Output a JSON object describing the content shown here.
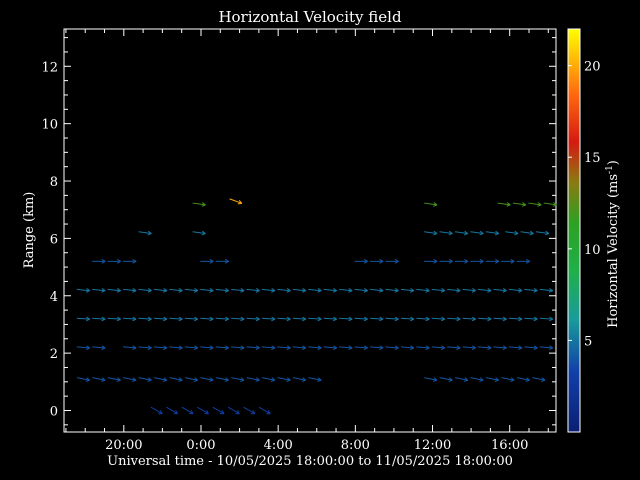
{
  "chart_data": {
    "type": "vector-field",
    "title": "Horizontal Velocity field",
    "xlabel": "Universal time - 10/05/2025 18:00:00 to 11/05/2025 18:00:00",
    "ylabel": "Range (km)",
    "x_units": "hours since 10/05/2025 18:00",
    "xlim": [
      -1.1,
      24.4
    ],
    "ylim": [
      -0.75,
      13.3
    ],
    "x_ticks": [
      {
        "value": 2,
        "label": "20:00"
      },
      {
        "value": 6,
        "label": "0:00"
      },
      {
        "value": 10,
        "label": "4:00"
      },
      {
        "value": 14,
        "label": "8:00"
      },
      {
        "value": 18,
        "label": "12:00"
      },
      {
        "value": 22,
        "label": "16:00"
      }
    ],
    "y_ticks": [
      {
        "value": 0,
        "label": "0"
      },
      {
        "value": 2,
        "label": "2"
      },
      {
        "value": 4,
        "label": "4"
      },
      {
        "value": 6,
        "label": "6"
      },
      {
        "value": 8,
        "label": "8"
      },
      {
        "value": 10,
        "label": "10"
      },
      {
        "value": 12,
        "label": "12"
      }
    ],
    "colorbar": {
      "label": "Horizontal Velocity (ms",
      "label_sup": "-1",
      "label_close": ")",
      "range": [
        0,
        22
      ],
      "ticks": [
        {
          "value": 5,
          "label": "5"
        },
        {
          "value": 10,
          "label": "10"
        },
        {
          "value": 15,
          "label": "15"
        },
        {
          "value": 20,
          "label": "20"
        }
      ]
    },
    "rows": [
      {
        "range_km": 0.0,
        "speed": 3,
        "dir_deg": -30,
        "hours": [
          3.7,
          4.5,
          5.3,
          6.1,
          6.9,
          7.7,
          8.5,
          9.3
        ]
      },
      {
        "range_km": 1.1,
        "speed": 4,
        "dir_deg": -12,
        "hours": [
          -0.1,
          0.7,
          1.5,
          2.3,
          3.1,
          3.9,
          4.7,
          5.5,
          6.3,
          7.1,
          7.9,
          8.7,
          9.5,
          10.3,
          11.1,
          11.9,
          17.9,
          18.7,
          19.5,
          20.3,
          21.1,
          21.9,
          22.7,
          23.5
        ]
      },
      {
        "range_km": 2.2,
        "speed": 4,
        "dir_deg": -5,
        "hours": [
          -0.1,
          0.7,
          2.3,
          3.1,
          3.9,
          4.7,
          5.5,
          6.3,
          7.1,
          7.9,
          8.7,
          9.5,
          10.3,
          11.1,
          11.9,
          12.7,
          13.5,
          14.3,
          15.1,
          15.9,
          16.7,
          17.5,
          18.3,
          19.1,
          19.9,
          20.7,
          21.5,
          22.3,
          23.1,
          23.9
        ]
      },
      {
        "range_km": 3.2,
        "speed": 5,
        "dir_deg": -4,
        "hours": [
          -0.1,
          0.7,
          1.5,
          2.3,
          3.1,
          3.9,
          4.7,
          5.5,
          6.3,
          7.1,
          7.9,
          8.7,
          9.5,
          10.3,
          11.1,
          11.9,
          12.7,
          13.5,
          14.3,
          15.1,
          15.9,
          16.7,
          17.5,
          18.3,
          19.1,
          19.9,
          20.7,
          21.5,
          22.3,
          23.1,
          23.9
        ]
      },
      {
        "range_km": 4.2,
        "speed": 5,
        "dir_deg": -6,
        "hours": [
          -0.1,
          0.7,
          1.5,
          2.3,
          3.1,
          3.9,
          4.7,
          5.5,
          6.3,
          7.1,
          7.9,
          8.7,
          9.5,
          10.3,
          11.1,
          11.9,
          12.7,
          13.5,
          14.3,
          15.1,
          15.9,
          16.7,
          17.5,
          18.3,
          19.1,
          19.9,
          20.7,
          21.5,
          22.3,
          23.1,
          23.9
        ]
      },
      {
        "range_km": 5.2,
        "speed": 4,
        "dir_deg": 0,
        "hours": [
          0.7,
          1.5,
          2.3,
          6.3,
          7.1,
          14.3,
          15.1,
          15.9,
          17.9,
          18.7,
          19.5,
          20.3,
          21.1,
          21.9,
          22.7
        ]
      },
      {
        "range_km": 6.2,
        "speed": 5,
        "dir_deg": -8,
        "hours": [
          3.1,
          5.9,
          17.9,
          18.7,
          19.5,
          20.3,
          21.1,
          22.1,
          22.9,
          23.7
        ]
      },
      {
        "range_km": 7.2,
        "speed": 12,
        "dir_deg": -8,
        "hours": [
          5.9,
          17.9,
          21.7,
          22.5,
          23.3,
          24.1
        ]
      }
    ],
    "highlights": [
      {
        "hour": 7.8,
        "range_km": 7.3,
        "speed": 20,
        "dir_deg": -20
      }
    ]
  }
}
